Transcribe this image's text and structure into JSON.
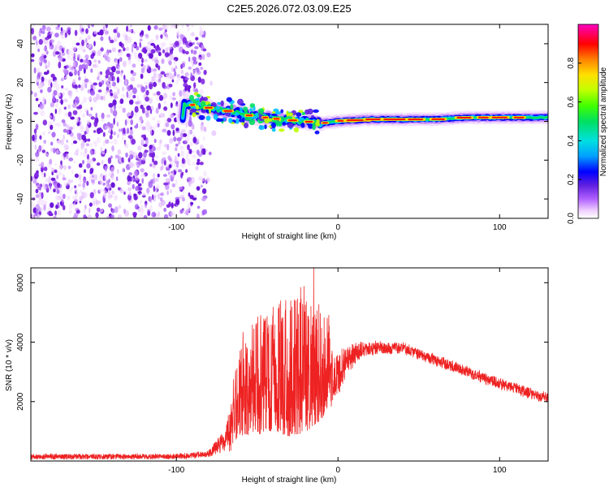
{
  "title": "C2E5.2026.072.03.09.E25",
  "colors": {
    "noise": "#7b1fe0",
    "snr_line": "#ee2222",
    "axis": "#000000"
  },
  "chart_data": [
    {
      "type": "heatmap",
      "name": "spectrogram",
      "xlabel": "Height of straight line (km)",
      "ylabel": "Frequency (Hz)",
      "xlim": [
        -190,
        130
      ],
      "ylim": [
        -50,
        50
      ],
      "x_ticks": [
        -100,
        0,
        100
      ],
      "y_ticks": [
        -40,
        -20,
        0,
        20,
        40
      ],
      "colorbar": {
        "label": "Normalized spectral amplitude",
        "range": [
          0,
          1
        ],
        "ticks": [
          "0.0",
          "0.2",
          "0.4",
          "0.6",
          "0.8"
        ],
        "tick_values": [
          0.0,
          0.2,
          0.4,
          0.6,
          0.8
        ],
        "colormap": [
          "#ffffff",
          "#f0d0ff",
          "#b060ff",
          "#6020e0",
          "#0000ff",
          "#00a0ff",
          "#00e0e0",
          "#00e060",
          "#40ff00",
          "#c0ff00",
          "#ffe000",
          "#ff8000",
          "#ff0000",
          "#ff00c0"
        ]
      },
      "noise_region_x": [
        -190,
        -82
      ],
      "signal_track": [
        {
          "x": -95,
          "y": 9
        },
        {
          "x": -85,
          "y": 8
        },
        {
          "x": -75,
          "y": 6
        },
        {
          "x": -65,
          "y": 5
        },
        {
          "x": -55,
          "y": 3
        },
        {
          "x": -45,
          "y": 2
        },
        {
          "x": -35,
          "y": 1
        },
        {
          "x": -20,
          "y": 0
        },
        {
          "x": -10,
          "y": -1
        },
        {
          "x": 0,
          "y": 0
        },
        {
          "x": 20,
          "y": 1
        },
        {
          "x": 40,
          "y": 1
        },
        {
          "x": 60,
          "y": 1
        },
        {
          "x": 80,
          "y": 2
        },
        {
          "x": 100,
          "y": 2
        },
        {
          "x": 130,
          "y": 2
        }
      ]
    },
    {
      "type": "line",
      "name": "snr",
      "xlabel": "Height of straight line (km)",
      "ylabel": "SNR (10 * v/v)",
      "xlim": [
        -190,
        130
      ],
      "ylim": [
        0,
        6500
      ],
      "x_ticks": [
        -100,
        0,
        100
      ],
      "y_ticks": [
        2000,
        4000,
        6000
      ],
      "envelope": [
        {
          "x": -190,
          "mean": 150,
          "amp": 120
        },
        {
          "x": -100,
          "mean": 150,
          "amp": 120
        },
        {
          "x": -80,
          "mean": 250,
          "amp": 150
        },
        {
          "x": -70,
          "mean": 700,
          "amp": 500
        },
        {
          "x": -60,
          "mean": 1800,
          "amp": 1700
        },
        {
          "x": -50,
          "mean": 2000,
          "amp": 2000
        },
        {
          "x": -40,
          "mean": 2200,
          "amp": 2200
        },
        {
          "x": -30,
          "mean": 2100,
          "amp": 2300
        },
        {
          "x": -20,
          "mean": 2400,
          "amp": 2600
        },
        {
          "x": -10,
          "mean": 2500,
          "amp": 2000
        },
        {
          "x": 0,
          "mean": 3000,
          "amp": 1000
        },
        {
          "x": 10,
          "mean": 3600,
          "amp": 500
        },
        {
          "x": 20,
          "mean": 3800,
          "amp": 300
        },
        {
          "x": 40,
          "mean": 3800,
          "amp": 250
        },
        {
          "x": 60,
          "mean": 3400,
          "amp": 250
        },
        {
          "x": 80,
          "mean": 3000,
          "amp": 250
        },
        {
          "x": 100,
          "mean": 2600,
          "amp": 250
        },
        {
          "x": 130,
          "mean": 2100,
          "amp": 250
        }
      ],
      "peak": {
        "x": -15,
        "y": 6500
      }
    }
  ]
}
